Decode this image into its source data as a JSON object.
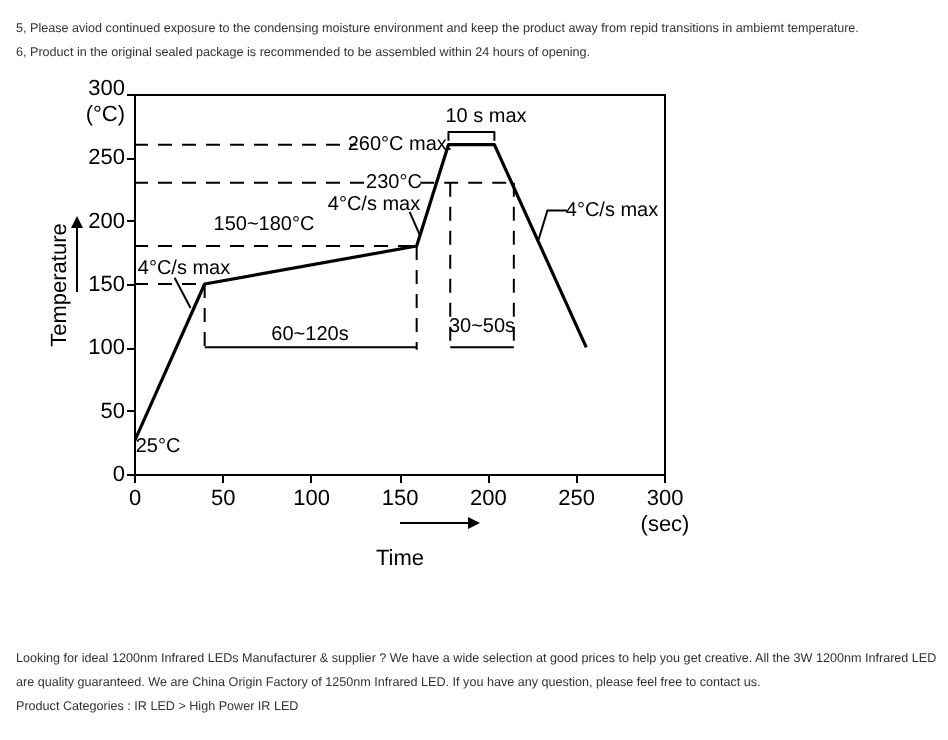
{
  "chart_data": {
    "type": "line",
    "xlabel": "Time",
    "ylabel": "Temperature",
    "xlim": [
      0,
      300
    ],
    "ylim": [
      0,
      300
    ],
    "xticks": [
      0,
      50,
      100,
      150,
      200,
      250,
      {
        "value": 300,
        "label": "300\n(sec)"
      }
    ],
    "yticks": [
      0,
      50,
      100,
      150,
      200,
      250,
      {
        "value": 300,
        "label": "300\n(°C)"
      }
    ],
    "grid": false,
    "marker": "none",
    "series": [
      {
        "color": "#000000",
        "line_style": "solid",
        "x": [
          0,
          40,
          160,
          178,
          204,
          256
        ],
        "values": [
          25,
          150,
          180,
          260,
          260,
          100
        ]
      },
      {
        "color": "#000000",
        "line_style": "dashed",
        "x": [
          0,
          126
        ],
        "values": [
          260,
          260
        ]
      },
      {
        "color": "#000000",
        "line_style": "dashed",
        "x": [
          0,
          132
        ],
        "values": [
          230,
          230
        ]
      },
      {
        "color": "#000000",
        "line_style": "dashed",
        "x": [
          162,
          215
        ],
        "values": [
          230,
          230
        ]
      },
      {
        "color": "#000000",
        "line_style": "dashed",
        "x": [
          0,
          160
        ],
        "values": [
          180,
          180
        ]
      },
      {
        "color": "#000000",
        "line_style": "dashed",
        "x": [
          0,
          40
        ],
        "values": [
          150,
          150
        ]
      },
      {
        "color": "#000000",
        "line_style": "dashed",
        "x": [
          40,
          40
        ],
        "values": [
          150,
          98
        ]
      },
      {
        "color": "#000000",
        "line_style": "dashed",
        "x": [
          160,
          160
        ],
        "values": [
          180,
          98
        ]
      },
      {
        "color": "#000000",
        "line_style": "dashed",
        "x": [
          179,
          179
        ],
        "values": [
          230,
          98
        ]
      },
      {
        "color": "#000000",
        "line_style": "dashed",
        "x": [
          215,
          215
        ],
        "values": [
          230,
          98
        ]
      },
      {
        "color": "#000000",
        "line_style": "solid",
        "x": [
          40,
          160
        ],
        "values": [
          100,
          100
        ]
      },
      {
        "color": "#000000",
        "line_style": "solid",
        "x": [
          179,
          215
        ],
        "values": [
          100,
          100
        ]
      },
      {
        "color": "#000000",
        "line_style": "solid",
        "x": [
          178,
          178,
          204,
          204
        ],
        "values": [
          263,
          270,
          270,
          263
        ]
      },
      {
        "color": "#000000",
        "line_style": "solid",
        "x": [
          23,
          32
        ],
        "values": [
          155,
          131
        ]
      },
      {
        "color": "#000000",
        "line_style": "solid",
        "x": [
          156,
          162
        ],
        "values": [
          207,
          188
        ]
      },
      {
        "color": "#000000",
        "line_style": "solid",
        "x": [
          245,
          234,
          229
        ],
        "values": [
          208,
          208,
          185
        ]
      }
    ],
    "annotations": [
      "5, Please aviod continued exposure to the condensing moisture environment and keep the product away from repid transitions in ambiemt temperature.",
      "6, Product in the original sealed package is recommended to be assembled within 24 hours of opening.",
      "Looking for ideal 1200nm Infrared LEDs Manufacturer & supplier ? We have a wide selection at good prices to help you get creative. All the 3W 1200nm Infrared LED are quality guaranteed. We are China Origin Factory of 1250nm Infrared LED. If you have any question, please feel free to contact us.",
      "Product Categories : IR LED > High Power IR LED",
      "10 s max",
      "260°C max.",
      "230°C",
      "4°C/s max",
      "150~180°C",
      "4°C/s max",
      "4°C/s max",
      "60~120s",
      "30~50s",
      "25°C"
    ]
  }
}
